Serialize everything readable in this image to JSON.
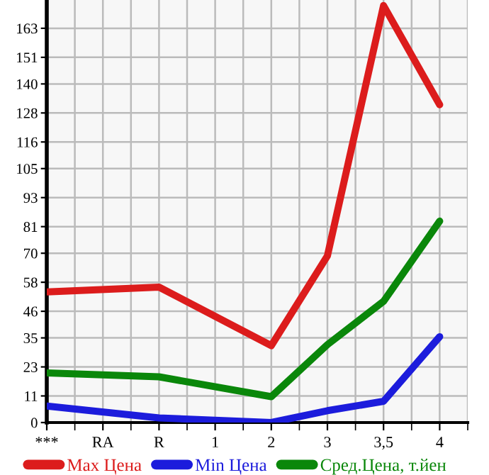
{
  "chart_data": {
    "type": "line",
    "categories": [
      "***",
      "RA",
      "R",
      "1",
      "2",
      "3",
      "3,5",
      "4"
    ],
    "series": [
      {
        "name": "Max Цена",
        "color": "#dc1c1c",
        "values": [
          54,
          null,
          56,
          null,
          31.8,
          68.9,
          172.4,
          131.4
        ]
      },
      {
        "name": "Min Цена",
        "color": "#1c1cdc",
        "values": [
          6.8,
          null,
          1.9,
          null,
          0,
          4.9,
          8.8,
          35.5
        ]
      },
      {
        "name": "Сред.Цена, т.йен",
        "color": "#0a870a",
        "values": [
          20.5,
          null,
          18.9,
          null,
          10.7,
          32.2,
          50.1,
          83.3
        ]
      }
    ],
    "ylim": [
      0,
      174.7
    ],
    "yticks": [
      0,
      11,
      23,
      35,
      46,
      58,
      70,
      81,
      93,
      105,
      116,
      128,
      140,
      151,
      163
    ],
    "grid": true,
    "legend": "bottom",
    "marker": "none",
    "line_style": "solid"
  }
}
